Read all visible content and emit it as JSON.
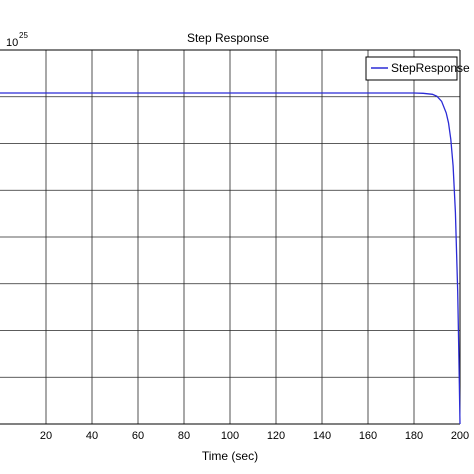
{
  "chart_data": {
    "type": "line",
    "title": "Step Response",
    "xlabel": "Time (sec)",
    "ylabel": "",
    "y_exponent_base": "10",
    "y_exponent_power": "25",
    "xlim": [
      0,
      200
    ],
    "xticks": [
      20,
      40,
      60,
      80,
      100,
      120,
      140,
      160,
      180,
      200
    ],
    "x_tick_labels": [
      "20",
      "40",
      "60",
      "80",
      "100",
      "120",
      "140",
      "160",
      "180",
      "200"
    ],
    "y_grid_count": 8,
    "grid": true,
    "legend_position": "top-right",
    "colors": {
      "series": "#2b2bd6",
      "grid": "#262626",
      "axis": "#000000"
    },
    "series": [
      {
        "name": "StepResponse",
        "x": [
          0,
          20,
          40,
          60,
          80,
          100,
          120,
          140,
          160,
          180,
          184,
          188,
          190,
          192,
          194,
          195,
          196,
          197,
          198,
          199,
          199.5,
          200
        ],
        "y_rel": [
          1.0,
          1.0,
          1.0,
          1.0,
          1.0,
          1.0,
          1.0,
          1.0,
          1.0,
          1.0,
          0.999,
          0.996,
          0.99,
          0.975,
          0.94,
          0.91,
          0.86,
          0.78,
          0.64,
          0.4,
          0.2,
          0.0
        ]
      }
    ]
  }
}
